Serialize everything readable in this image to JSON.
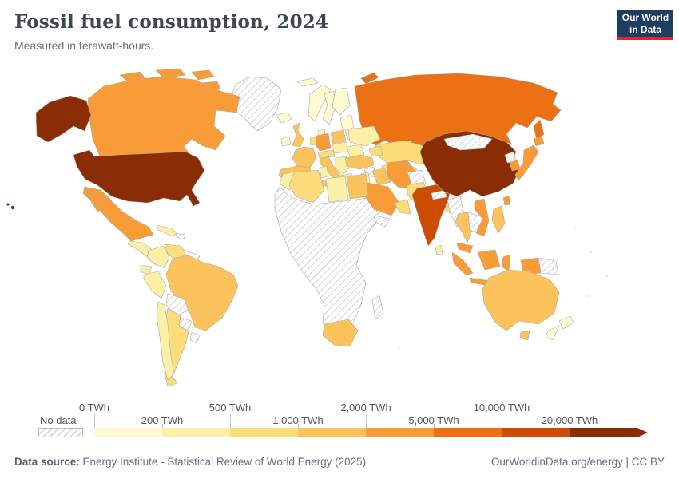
{
  "header": {
    "title": "Fossil fuel consumption, 2024",
    "subtitle": "Measured in terawatt-hours.",
    "logo_line1": "Our World",
    "logo_line2": "in Data"
  },
  "legend": {
    "no_data_label": "No data",
    "ticks": [
      "0 TWh",
      "200 TWh",
      "500 TWh",
      "1,000 TWh",
      "2,000 TWh",
      "5,000 TWh",
      "10,000 TWh",
      "20,000 TWh"
    ]
  },
  "footer": {
    "source_label": "Data source:",
    "source_text": " Energy Institute - Statistical Review of World Energy (2025)",
    "attribution": "OurWorldinData.org/energy | CC BY"
  },
  "chart_data": {
    "type": "choropleth-map",
    "title": "Fossil fuel consumption, 2024",
    "unit": "TWh",
    "legend_position": "bottom",
    "bins": [
      {
        "id": "b1",
        "range": "0–200 TWh",
        "color": "#fefbd2"
      },
      {
        "id": "b2",
        "range": "200–500 TWh",
        "color": "#fcf0a8"
      },
      {
        "id": "b3",
        "range": "500–1,000 TWh",
        "color": "#fcdd7a"
      },
      {
        "id": "b4",
        "range": "1,000–2,000 TWh",
        "color": "#fcc35c"
      },
      {
        "id": "b5",
        "range": "2,000–5,000 TWh",
        "color": "#f99c38"
      },
      {
        "id": "b6",
        "range": "5,000–10,000 TWh",
        "color": "#ec7014"
      },
      {
        "id": "b7",
        "range": "10,000–20,000 TWh",
        "color": "#cc4c02"
      },
      {
        "id": "b8",
        "range": "> 20,000 TWh",
        "color": "#8b2d04"
      }
    ],
    "no_data_color": "hatched",
    "regions": {
      "united-states": "b8",
      "alaska": "b8",
      "hawaii": "b8",
      "canada": "b5",
      "canadian-arctic": "b5",
      "greenland": "no-data",
      "mexico": "b5",
      "central-america": "b2",
      "cuba": "b2",
      "caribbean": "no-data",
      "colombia": "b2",
      "venezuela": "b3",
      "guyana-suriname": "no-data",
      "ecuador": "b2",
      "peru": "b2",
      "brazil": "b4",
      "bolivia": "no-data",
      "paraguay": "no-data",
      "uruguay": "no-data",
      "chile": "b2",
      "argentina": "b3",
      "iceland": "b1",
      "svalbard": "b1",
      "ireland": "b1",
      "united-kingdom": "b4",
      "norway": "b1",
      "sweden": "b1",
      "finland": "b1",
      "denmark": "b1",
      "baltics": "b1",
      "belarus": "b2",
      "poland": "b4",
      "germany": "b5",
      "benelux": "b3",
      "france": "b4",
      "iberia": "b4",
      "switzerland-austria": "b3",
      "czech-hungary": "b2",
      "italy": "b4",
      "sicily": "b4",
      "balkans": "b2",
      "greece": "b2",
      "romania": "b2",
      "ukraine": "b2",
      "russia": "b6",
      "novaya-zemlya": "b6",
      "sakhalin": "b6",
      "kazakhstan": "b3",
      "central-asia": "b3",
      "caucasus": "b3",
      "turkey": "b4",
      "syria": "no-data",
      "iraq": "b4",
      "iran": "b5",
      "saudi-arabia": "b5",
      "uae-oman": "b3",
      "yemen": "no-data",
      "israel-jordan": "b2",
      "morocco": "b2",
      "algeria": "b3",
      "tunisia": "b2",
      "libya": "b2",
      "egypt": "b4",
      "sub-saharan-africa": "no-data",
      "south-africa": "b4",
      "madagascar": "no-data",
      "afghanistan": "no-data",
      "pakistan": "b3",
      "india": "b7",
      "nepal": "no-data",
      "bangladesh": "b3",
      "sri-lanka": "b2",
      "china": "b8",
      "mongolia": "no-data",
      "north-korea": "no-data",
      "south-korea": "b5",
      "japan": "b5",
      "hokkaido": "b5",
      "taiwan": "b5",
      "myanmar": "no-data",
      "thailand": "b4",
      "laos-cambodia": "no-data",
      "vietnam": "b5",
      "malaysia": "b5",
      "sumatra": "b5",
      "java": "b5",
      "borneo": "b5",
      "sulawesi": "b5",
      "west-papua": "b5",
      "papua-new-guinea": "no-data",
      "philippines": "b4",
      "australia": "b4",
      "tasmania": "b4",
      "new-zealand-north": "b1",
      "new-zealand-south": "b1"
    }
  }
}
